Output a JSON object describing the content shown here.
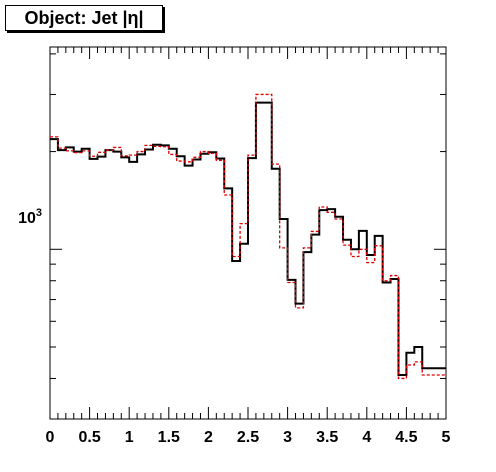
{
  "chart_data": {
    "type": "histogram",
    "title": "Object: Jet |η|",
    "x": {
      "range": [
        0,
        5
      ],
      "tick_values": [
        0,
        0.5,
        1,
        1.5,
        2,
        2.5,
        3,
        3.5,
        4,
        4.5,
        5
      ],
      "tick_labels": [
        "0",
        "0.5",
        "1",
        "1.5",
        "2",
        "2.5",
        "3",
        "3.5",
        "4",
        "4.5",
        "5"
      ]
    },
    "y": {
      "scale": "log",
      "range": [
        300,
        4200
      ],
      "tick_label_text": "10",
      "tick_label_exponent": "3",
      "tick_label_value": 1000
    },
    "bin_edges": [
      0,
      0.1,
      0.2,
      0.3,
      0.4,
      0.5,
      0.6,
      0.7,
      0.8,
      0.9,
      1.0,
      1.1,
      1.2,
      1.3,
      1.4,
      1.5,
      1.6,
      1.7,
      1.8,
      1.9,
      2.0,
      2.1,
      2.2,
      2.3,
      2.4,
      2.5,
      2.6,
      2.7,
      2.8,
      2.9,
      3.0,
      3.1,
      3.2,
      3.3,
      3.4,
      3.5,
      3.6,
      3.7,
      3.8,
      3.9,
      4.0,
      4.1,
      4.2,
      4.3,
      4.4,
      4.5,
      4.6,
      4.7,
      4.8,
      4.9,
      5.0
    ],
    "series": [
      {
        "color": "#000000",
        "style": "solid",
        "values": [
          2185,
          2020,
          2060,
          2000,
          2040,
          1900,
          1930,
          2020,
          2000,
          1920,
          1860,
          1960,
          2030,
          2100,
          2090,
          2040,
          1935,
          1810,
          1890,
          1970,
          1990,
          1905,
          1540,
          920,
          1040,
          1910,
          2830,
          2830,
          1770,
          1240,
          805,
          680,
          980,
          1110,
          1320,
          1330,
          1260,
          1070,
          1000,
          1140,
          960,
          1100,
          790,
          810,
          410,
          480,
          500,
          430,
          430,
          430
        ]
      },
      {
        "color": "#dd0000",
        "style": "dashed",
        "values": [
          2220,
          2050,
          2010,
          1985,
          2010,
          1935,
          1990,
          2020,
          2060,
          1940,
          1950,
          2000,
          2090,
          2075,
          2070,
          1960,
          1870,
          1860,
          1920,
          2000,
          1975,
          1880,
          1470,
          950,
          1200,
          1950,
          3000,
          3000,
          1830,
          1010,
          790,
          660,
          1010,
          1135,
          1350,
          1300,
          1240,
          1030,
          950,
          1000,
          910,
          1025,
          800,
          830,
          400,
          440,
          450,
          410,
          410,
          410
        ]
      }
    ]
  }
}
